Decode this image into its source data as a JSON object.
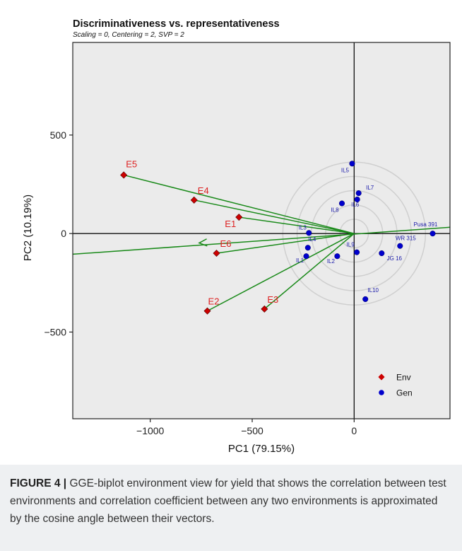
{
  "figure": {
    "caption_label": "FIGURE 4 |",
    "caption_text": "GGE-biplot environment view for yield that shows the correlation between test environments and correlation coefficient between any two environments is approximated by the cosine angle between their vectors."
  },
  "chart_data": {
    "type": "scatter",
    "title": "Discriminativeness vs. representativeness",
    "subtitle": "Scaling = 0, Centering = 2, SVP = 2",
    "xlabel": "PC1 (79.15%)",
    "ylabel": "PC2 (10.19%)",
    "xlim": [
      -1380,
      470
    ],
    "ylim": [
      -940,
      970
    ],
    "x_ticks": [
      -1000,
      -500,
      0
    ],
    "x_tick_labels": [
      "−1000",
      "−500",
      "0"
    ],
    "y_ticks": [
      -500,
      0,
      500
    ],
    "y_tick_labels": [
      "−500",
      "0",
      "500"
    ],
    "legend": {
      "placement": "bottom-right",
      "entries": [
        {
          "name": "Env",
          "marker": "diamond",
          "color": "#cc0000"
        },
        {
          "name": "Gen",
          "marker": "circle",
          "color": "#0000cc"
        }
      ]
    },
    "series": [
      {
        "name": "Env",
        "marker": "diamond",
        "color": "#cc0000",
        "label_color": "#dd2222",
        "points": [
          {
            "label": "E1",
            "x": -565,
            "y": 83
          },
          {
            "label": "E2",
            "x": -720,
            "y": -393
          },
          {
            "label": "E3",
            "x": -440,
            "y": -383
          },
          {
            "label": "E4",
            "x": -785,
            "y": 170
          },
          {
            "label": "E5",
            "x": -1130,
            "y": 297
          },
          {
            "label": "E6",
            "x": -675,
            "y": -100
          }
        ]
      },
      {
        "name": "Gen",
        "marker": "circle",
        "color": "#0000cc",
        "label_color": "#1a1aaa",
        "points": [
          {
            "label": "IL1",
            "x": -235,
            "y": -115
          },
          {
            "label": "IL2",
            "x": -83,
            "y": -115
          },
          {
            "label": "IL3",
            "x": -222,
            "y": 3
          },
          {
            "label": "IL4",
            "x": -227,
            "y": -72
          },
          {
            "label": "IL5",
            "x": -10,
            "y": 355
          },
          {
            "label": "IL6",
            "x": 15,
            "y": 173
          },
          {
            "label": "IL7",
            "x": 22,
            "y": 205
          },
          {
            "label": "IL8",
            "x": -60,
            "y": 153
          },
          {
            "label": "IL9",
            "x": 13,
            "y": -95
          },
          {
            "label": "IL10",
            "x": 55,
            "y": -333
          },
          {
            "label": "JG 16",
            "x": 135,
            "y": -100
          },
          {
            "label": "WR 315",
            "x": 225,
            "y": -63
          },
          {
            "label": "Pusa 391",
            "x": 385,
            "y": 0
          }
        ]
      }
    ],
    "average_environment_axis": {
      "from": [
        -1380,
        -105
      ],
      "to": [
        470,
        32
      ],
      "color": "#1a8a1a"
    },
    "concentric_circles": [
      70,
      140,
      210,
      280,
      350
    ],
    "grid": false,
    "panel_background": "#ebebeb"
  }
}
